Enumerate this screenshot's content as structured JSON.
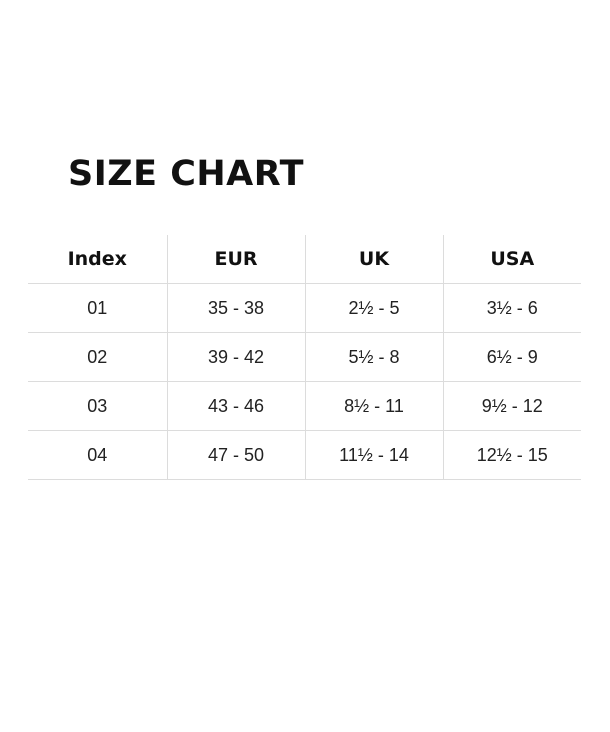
{
  "title": "SIZE CHART",
  "table": {
    "headers": [
      "Index",
      "EUR",
      "UK",
      "USA"
    ],
    "rows": [
      [
        "01",
        "35 - 38",
        "2½ - 5",
        "3½ - 6"
      ],
      [
        "02",
        "39 - 42",
        "5½ - 8",
        "6½ - 9"
      ],
      [
        "03",
        "43 - 46",
        "8½ - 11",
        "9½ - 12"
      ],
      [
        "04",
        "47 - 50",
        "11½ - 14",
        "12½ - 15"
      ]
    ]
  }
}
